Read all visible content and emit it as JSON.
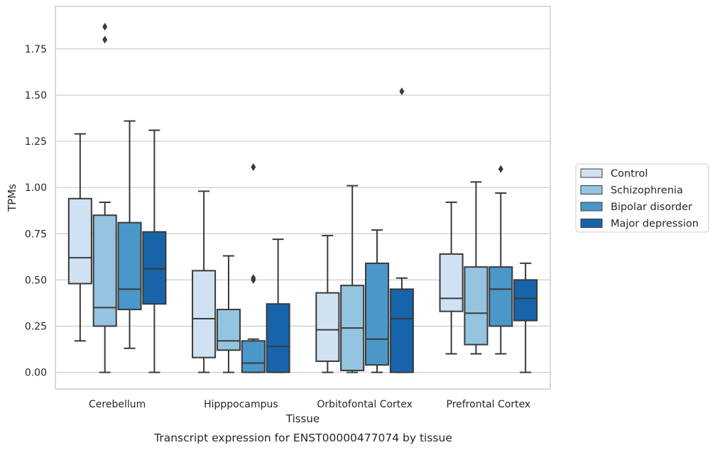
{
  "chart_data": {
    "type": "boxplot",
    "caption": "Transcript expression for ENST00000477074 by tissue",
    "xlabel": "Tissue",
    "ylabel": "TPMs",
    "ylim": [
      -0.09,
      1.98
    ],
    "yticks": [
      "0.00",
      "0.25",
      "0.50",
      "0.75",
      "1.00",
      "1.25",
      "1.50",
      "1.75"
    ],
    "grid": "horizontal",
    "legend_position": "right",
    "categories": [
      "Cerebellum",
      "Hipppocampus",
      "Orbitofontal Cortex",
      "Prefrontal Cortex"
    ],
    "series": [
      {
        "name": "Control",
        "color": "#d0e1f2",
        "boxes": [
          {
            "whislo": 0.17,
            "q1": 0.48,
            "med": 0.62,
            "q3": 0.94,
            "whishi": 1.29,
            "fliers": []
          },
          {
            "whislo": 0.0,
            "q1": 0.08,
            "med": 0.29,
            "q3": 0.55,
            "whishi": 0.98,
            "fliers": []
          },
          {
            "whislo": 0.0,
            "q1": 0.06,
            "med": 0.23,
            "q3": 0.43,
            "whishi": 0.74,
            "fliers": []
          },
          {
            "whislo": 0.1,
            "q1": 0.33,
            "med": 0.4,
            "q3": 0.64,
            "whishi": 0.92,
            "fliers": []
          }
        ]
      },
      {
        "name": "Schizophrenia",
        "color": "#94c4df",
        "boxes": [
          {
            "whislo": 0.0,
            "q1": 0.25,
            "med": 0.35,
            "q3": 0.85,
            "whishi": 0.92,
            "fliers": [
              1.8,
              1.87
            ]
          },
          {
            "whislo": 0.0,
            "q1": 0.12,
            "med": 0.17,
            "q3": 0.34,
            "whishi": 0.63,
            "fliers": []
          },
          {
            "whislo": 0.0,
            "q1": 0.01,
            "med": 0.24,
            "q3": 0.47,
            "whishi": 1.01,
            "fliers": []
          },
          {
            "whislo": 0.1,
            "q1": 0.15,
            "med": 0.32,
            "q3": 0.57,
            "whishi": 1.03,
            "fliers": []
          }
        ]
      },
      {
        "name": "Bipolar disorder",
        "color": "#4a98c9",
        "boxes": [
          {
            "whislo": 0.13,
            "q1": 0.34,
            "med": 0.45,
            "q3": 0.81,
            "whishi": 1.36,
            "fliers": []
          },
          {
            "whislo": 0.0,
            "q1": 0.0,
            "med": 0.05,
            "q3": 0.17,
            "whishi": 0.18,
            "fliers": [
              0.5,
              0.51,
              1.11
            ]
          },
          {
            "whislo": 0.0,
            "q1": 0.04,
            "med": 0.18,
            "q3": 0.59,
            "whishi": 0.77,
            "fliers": []
          },
          {
            "whislo": 0.1,
            "q1": 0.25,
            "med": 0.45,
            "q3": 0.57,
            "whishi": 0.97,
            "fliers": [
              1.1
            ]
          }
        ]
      },
      {
        "name": "Major depression",
        "color": "#1764ab",
        "boxes": [
          {
            "whislo": 0.0,
            "q1": 0.37,
            "med": 0.56,
            "q3": 0.76,
            "whishi": 1.31,
            "fliers": []
          },
          {
            "whislo": 0.0,
            "q1": 0.0,
            "med": 0.14,
            "q3": 0.37,
            "whishi": 0.72,
            "fliers": []
          },
          {
            "whislo": 0.0,
            "q1": 0.0,
            "med": 0.29,
            "q3": 0.45,
            "whishi": 0.51,
            "fliers": [
              1.52
            ]
          },
          {
            "whislo": 0.0,
            "q1": 0.28,
            "med": 0.4,
            "q3": 0.5,
            "whishi": 0.59,
            "fliers": []
          }
        ]
      }
    ]
  }
}
